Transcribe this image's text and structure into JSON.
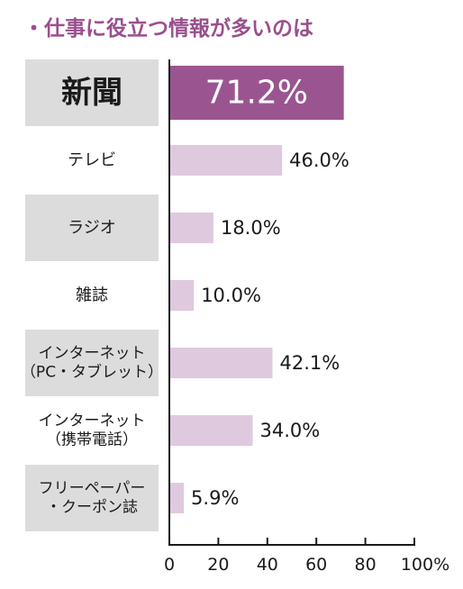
{
  "title": "・仕事に役立つ情報が多いのは",
  "colors": {
    "title": "#9a4f8e",
    "highlight_bar": "#9a5591",
    "bar": "#dfc9df",
    "label_bg": "#dcdcdc",
    "axis": "#1a1a1a",
    "text": "#1a1a1a",
    "highlight_text": "#ffffff"
  },
  "chart_data": {
    "type": "bar",
    "orientation": "horizontal",
    "title": "・仕事に役立つ情報が多いのは",
    "categories": [
      [
        "新聞"
      ],
      [
        "テレビ"
      ],
      [
        "ラジオ"
      ],
      [
        "雑誌"
      ],
      [
        "インターネット",
        "（PC・タブレット）"
      ],
      [
        "インターネット",
        "（携帯電話）"
      ],
      [
        "フリーペーパー",
        "・クーポン誌"
      ]
    ],
    "values": [
      71.2,
      46.0,
      18.0,
      10.0,
      42.1,
      34.0,
      5.9
    ],
    "value_labels": [
      "71.2%",
      "46.0%",
      "18.0%",
      "10.0%",
      "42.1%",
      "34.0%",
      "5.9%"
    ],
    "highlight_index": 0,
    "label_background": [
      true,
      false,
      true,
      false,
      true,
      false,
      true
    ],
    "xlim": [
      0,
      100
    ],
    "xticks": [
      0,
      20,
      40,
      60,
      80,
      100
    ],
    "xtick_labels": [
      "0",
      "20",
      "40",
      "60",
      "80",
      "100%"
    ],
    "grid": false,
    "legend": "none"
  }
}
